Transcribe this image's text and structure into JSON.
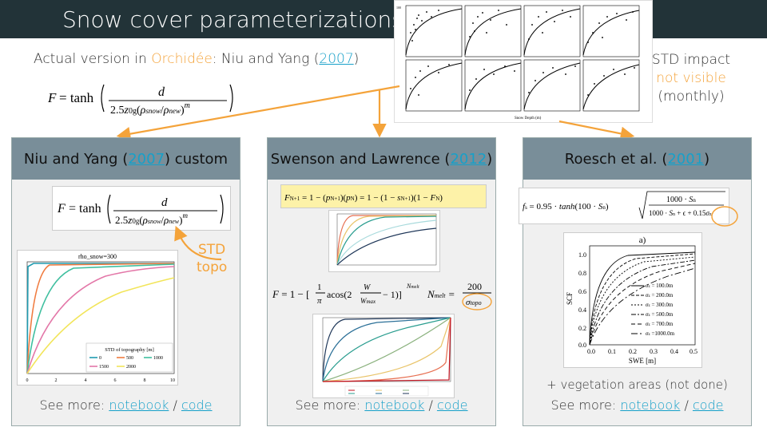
{
  "title": "Snow cover parameterizations",
  "subtitle": {
    "prefix": "Actual version in ",
    "model": "Orchidée",
    "rest": ": Niu and Yang (",
    "year": "2007",
    "close": ")"
  },
  "std_impact": {
    "line1": "STD impact",
    "line2": "not visible",
    "line3": "(monthly)"
  },
  "panels": [
    {
      "title_pre": "Niu and Yang (",
      "year": "2007",
      "title_post": ") custom",
      "note": "",
      "more_label": "See more: ",
      "link1": "notebook",
      "sep": " / ",
      "link2": "code"
    },
    {
      "title_pre": "Swenson and Lawrence (",
      "year": "2012",
      "title_post": ")",
      "note": "",
      "more_label": "See more: ",
      "link1": "notebook",
      "sep": " / ",
      "link2": "code"
    },
    {
      "title_pre": "Roesch et al. (",
      "year": "2001",
      "title_post": ")",
      "note": "+ vegetation areas (not done)",
      "more_label": "See more: ",
      "link1": "notebook",
      "sep": " / ",
      "link2": "code"
    }
  ],
  "std_topo": {
    "line1": "STD",
    "line2": "topo"
  },
  "plot1": {
    "title": "rho_snow=300",
    "legend_title": "STD of topography [m]",
    "legend": [
      "0",
      "500",
      "1000",
      "1500",
      "2000"
    ],
    "xticks": [
      "0",
      "2",
      "4",
      "6",
      "8",
      "10"
    ],
    "colors": [
      "#1f9bb0",
      "#f07b3f",
      "#3fbf9f",
      "#e377a8",
      "#f2e55a"
    ]
  },
  "plot3": {
    "title": "a)",
    "ylabel": "SCF",
    "xlabel": "SWE  [m]",
    "yticks": [
      "1.0",
      "0.8",
      "0.6",
      "0.4",
      "0.2",
      "0.0"
    ],
    "xticks": [
      "0.0",
      "0.1",
      "0.2",
      "0.3",
      "0.4",
      "0.5"
    ],
    "legend": [
      "= 100.0m",
      "= 200.0m",
      "= 300.0m",
      "= 500.0m",
      "= 700.0m",
      "=1000.0m"
    ]
  },
  "colors": {
    "title_bar": "#223338",
    "accent": "#f4a33a",
    "link": "#17a0c9",
    "panel_header": "#798e99"
  }
}
